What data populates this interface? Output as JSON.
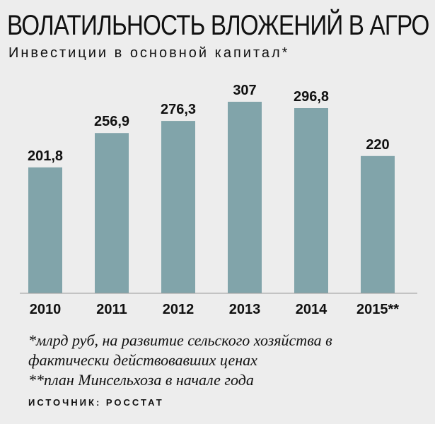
{
  "title": "ВОЛАТИЛЬНОСТЬ ВЛОЖЕНИЙ В АГРО",
  "subtitle": "Инвестиции в основной капитал*",
  "chart_data": {
    "type": "bar",
    "title": "ВОЛАТИЛЬНОСТЬ ВЛОЖЕНИЙ В АГРО",
    "subtitle": "Инвестиции в основной капитал*",
    "categories": [
      "2010",
      "2011",
      "2012",
      "2013",
      "2014",
      "2015**"
    ],
    "values": [
      201.8,
      256.9,
      276.3,
      307,
      296.8,
      220
    ],
    "value_labels": [
      "201,8",
      "256,9",
      "276,3",
      "307",
      "296,8",
      "220"
    ],
    "ylim": [
      0,
      307
    ],
    "grid": false,
    "bar_color": "#81a4aa",
    "axis_color": "#999999"
  },
  "notes": [
    "*млрд руб, на развитие сельского хозяйства в",
    "фактически действовавших ценах",
    "**план Минсельхоза в начале года"
  ],
  "source": "ИСТОЧНИК: РОССТАТ"
}
